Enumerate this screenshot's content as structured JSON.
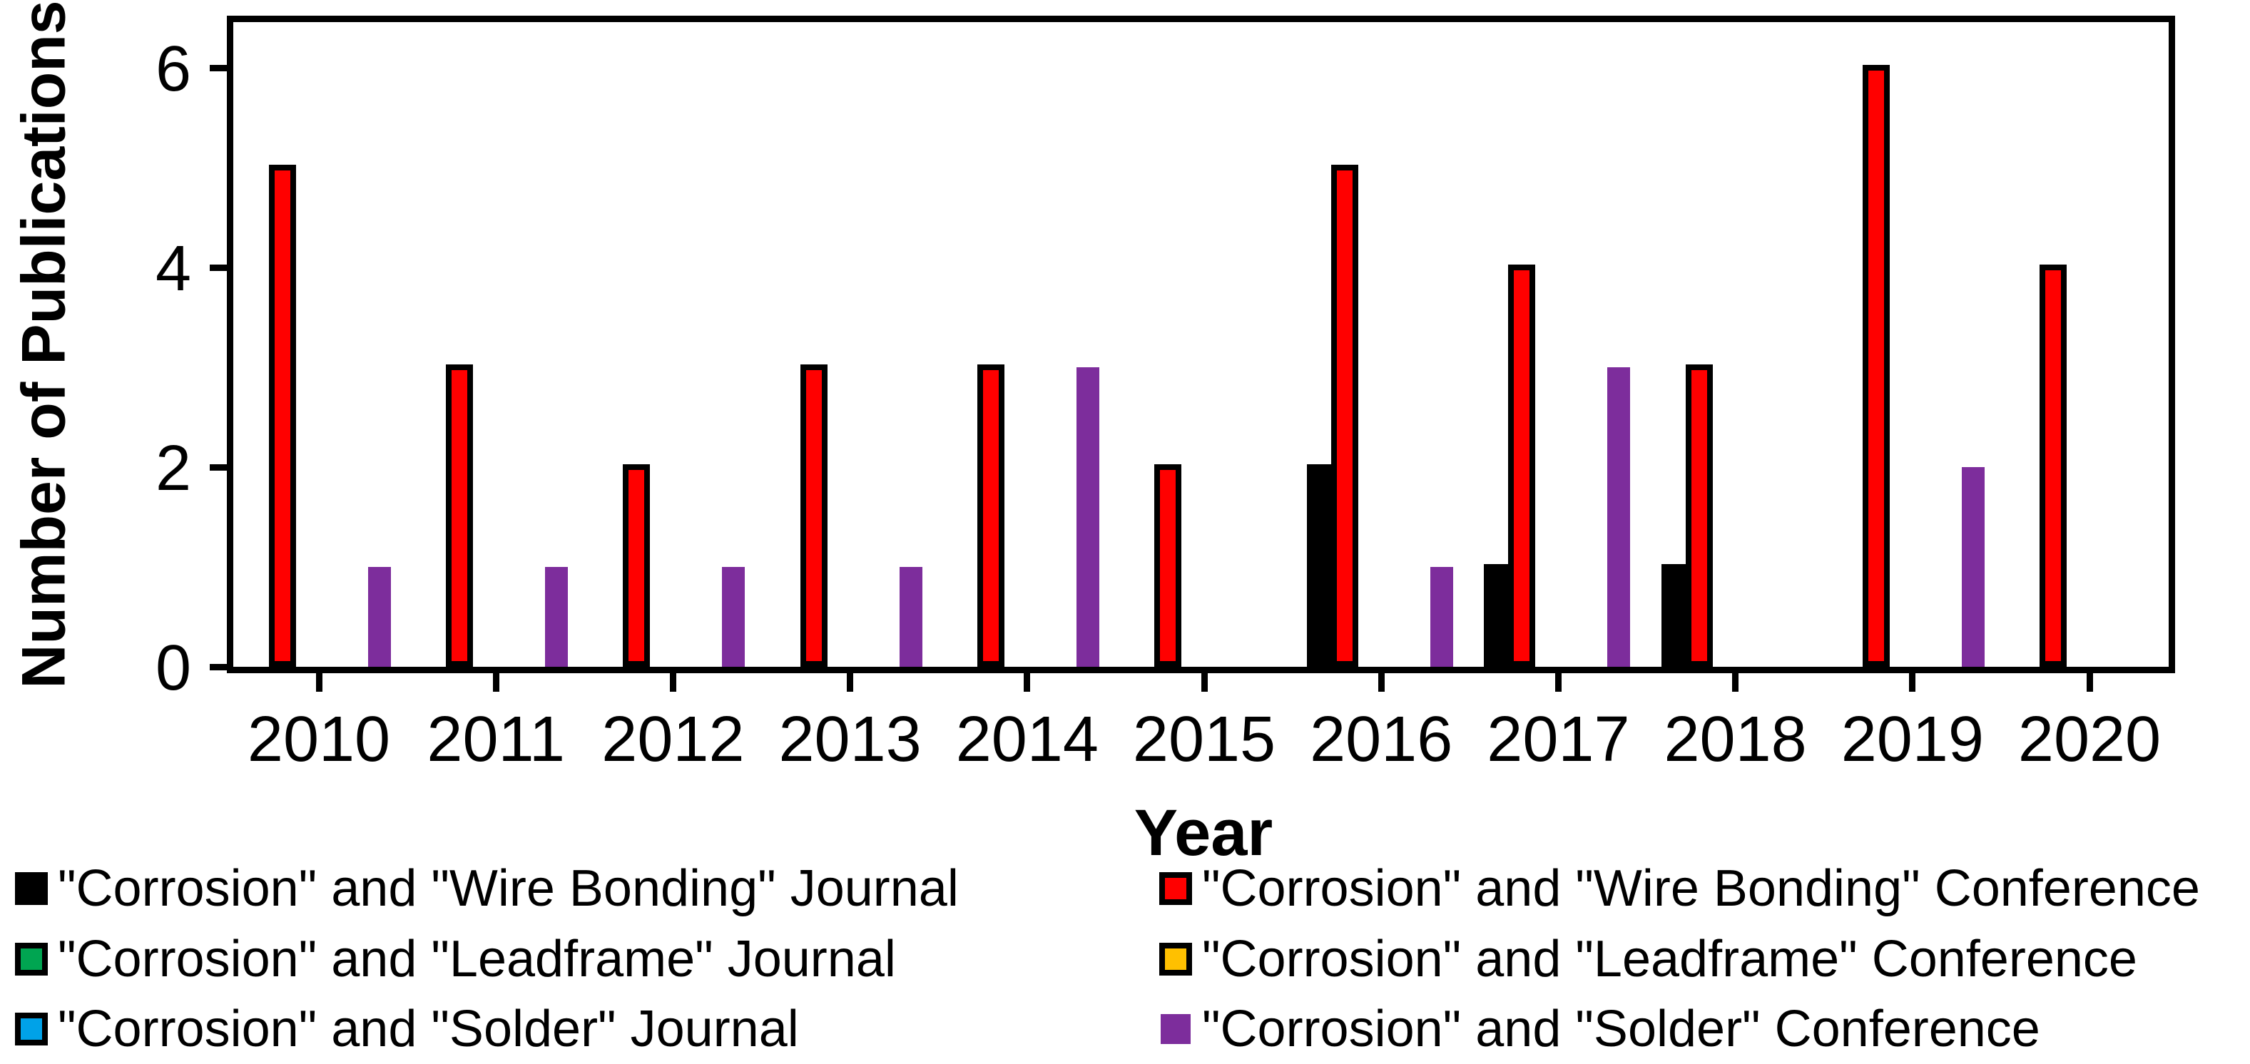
{
  "chart": {
    "y_axis_title": "Number of Publications",
    "x_axis_title": "Year"
  },
  "chart_data": {
    "type": "bar",
    "title": "",
    "xlabel": "Year",
    "ylabel": "Number of Publications",
    "categories": [
      "2010",
      "2011",
      "2012",
      "2013",
      "2014",
      "2015",
      "2016",
      "2017",
      "2018",
      "2019",
      "2020"
    ],
    "ylim": [
      0,
      6.5
    ],
    "yticks": [
      0,
      2,
      4,
      6
    ],
    "grid": false,
    "legend_position": "bottom",
    "series": [
      {
        "name": "\"Corrosion\" and \"Wire Bonding\" Journal",
        "slug": "wire-bonding-journal",
        "color": "#000000",
        "outline": "#000000",
        "values": [
          0,
          0,
          0,
          0,
          0,
          0,
          2,
          1,
          1,
          0,
          0
        ]
      },
      {
        "name": "\"Corrosion\" and \"Wire Bonding\" Conference",
        "slug": "wire-bonding-conference",
        "color": "#FF0000",
        "outline": "#000000",
        "values": [
          5,
          3,
          2,
          3,
          3,
          2,
          5,
          4,
          3,
          6,
          4
        ]
      },
      {
        "name": "\"Corrosion\" and \"Leadframe\" Journal",
        "slug": "leadframe-journal",
        "color": "#00A551",
        "outline": "#000000",
        "values": [
          0,
          0,
          0,
          0,
          0,
          0,
          0,
          0,
          0,
          0,
          0
        ]
      },
      {
        "name": "\"Corrosion\" and \"Leadframe\" Conference",
        "slug": "leadframe-conference",
        "color": "#FFC000",
        "outline": "#000000",
        "values": [
          0,
          0,
          0,
          0,
          0,
          0,
          0,
          0,
          0,
          0,
          0
        ]
      },
      {
        "name": "\"Corrosion\" and \"Solder\" Journal",
        "slug": "solder-journal",
        "color": "#00A2E8",
        "outline": "#000000",
        "values": [
          0,
          0,
          0,
          0,
          0,
          0,
          0,
          0,
          0,
          0,
          0
        ]
      },
      {
        "name": "\"Corrosion\" and \"Solder\" Conference",
        "slug": "solder-conference",
        "color": "#7D2D9C",
        "outline": null,
        "values": [
          1,
          1,
          1,
          1,
          3,
          0,
          1,
          3,
          0,
          2,
          0
        ]
      }
    ],
    "legend_columns": [
      [
        0,
        2,
        4
      ],
      [
        1,
        3,
        5
      ]
    ]
  }
}
